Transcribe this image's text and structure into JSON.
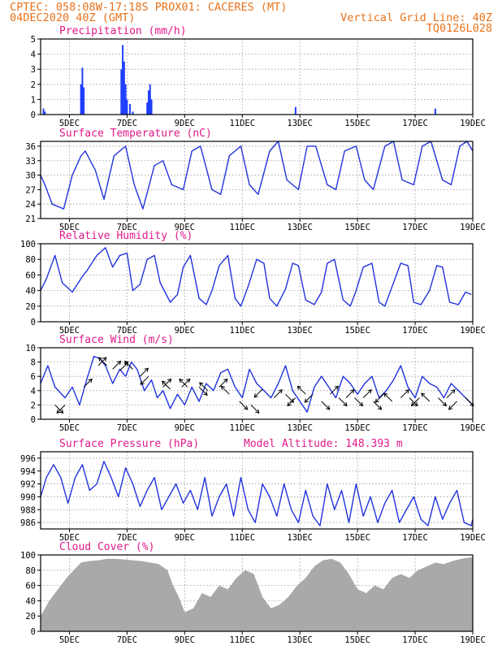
{
  "header": {
    "line1_left": "CPTEC:  058:08W-17:18S  PROX01: CACERES (MT)",
    "line2_left": "04DEC2020 40Z (GMT)",
    "line2_right": "Vertical Grid Line: 40Z",
    "line3_right": "TQ0126L028"
  },
  "colors": {
    "header": "#e8721c",
    "panel_title": "#e0198a",
    "line": "#2233dd",
    "bar": "#1f3fff",
    "cloud": "#a9a9a9",
    "grid": "#999999"
  },
  "x_ticks": [
    "5DEC",
    "7DEC",
    "9DEC",
    "11DEC",
    "13DEC",
    "15DEC",
    "17DEC",
    "19DEC"
  ],
  "chart_data": [
    {
      "type": "bar",
      "title": "Precipitation (mm/h)",
      "x": [
        4.1,
        4.15,
        5.4,
        5.45,
        5.5,
        6.8,
        6.85,
        6.9,
        6.95,
        7.0,
        7.1,
        7.2,
        7.7,
        7.75,
        7.8,
        7.85,
        12.85,
        17.7
      ],
      "values": [
        0.4,
        0.2,
        2.0,
        3.1,
        1.8,
        3.0,
        4.6,
        3.5,
        2.0,
        1.0,
        0.7,
        0.2,
        0.8,
        1.6,
        2.0,
        1.0,
        0.5,
        0.4
      ],
      "ylim": [
        0,
        5
      ],
      "yticks": [
        0,
        1,
        2,
        3,
        4,
        5
      ],
      "xlim": [
        4.0,
        19.0
      ]
    },
    {
      "type": "line",
      "title": "Surface Temperature (nC)",
      "x": [
        4.0,
        4.15,
        4.4,
        4.8,
        5.1,
        5.4,
        5.55,
        5.9,
        6.2,
        6.55,
        6.95,
        7.25,
        7.55,
        7.95,
        8.25,
        8.55,
        8.95,
        9.25,
        9.55,
        9.95,
        10.25,
        10.55,
        10.95,
        11.25,
        11.55,
        11.95,
        12.25,
        12.55,
        12.95,
        13.25,
        13.55,
        13.95,
        14.25,
        14.55,
        14.95,
        15.25,
        15.55,
        15.95,
        16.25,
        16.55,
        16.95,
        17.25,
        17.55,
        17.95,
        18.25,
        18.55,
        18.8,
        19.0
      ],
      "values": [
        30,
        28,
        24,
        23,
        30,
        34,
        35,
        31,
        25,
        34,
        36,
        28,
        23,
        32,
        33,
        28,
        27,
        35,
        36,
        27,
        26,
        34,
        36,
        28,
        26,
        35,
        37,
        29,
        27,
        36,
        36,
        28,
        27,
        35,
        36,
        29,
        27,
        36,
        37,
        29,
        28,
        36,
        37,
        29,
        28,
        36,
        37,
        35
      ],
      "ylim": [
        21,
        37
      ],
      "yticks": [
        21,
        24,
        27,
        30,
        33,
        36
      ],
      "xlim": [
        4.0,
        19.0
      ]
    },
    {
      "type": "line",
      "title": "Relative Humidity (%)",
      "x": [
        4.0,
        4.2,
        4.5,
        4.75,
        5.1,
        5.45,
        5.6,
        5.95,
        6.25,
        6.5,
        6.75,
        7.0,
        7.2,
        7.45,
        7.7,
        7.95,
        8.15,
        8.5,
        8.75,
        8.95,
        9.2,
        9.5,
        9.75,
        9.95,
        10.2,
        10.5,
        10.75,
        10.95,
        11.2,
        11.5,
        11.75,
        11.95,
        12.2,
        12.5,
        12.75,
        12.95,
        13.2,
        13.5,
        13.75,
        13.95,
        14.2,
        14.5,
        14.75,
        14.95,
        15.2,
        15.5,
        15.75,
        15.95,
        16.2,
        16.5,
        16.75,
        16.95,
        17.2,
        17.5,
        17.75,
        17.95,
        18.2,
        18.5,
        18.75,
        18.95
      ],
      "values": [
        40,
        55,
        85,
        50,
        38,
        58,
        65,
        85,
        95,
        70,
        85,
        88,
        40,
        48,
        80,
        85,
        50,
        25,
        35,
        70,
        85,
        30,
        22,
        40,
        72,
        85,
        30,
        20,
        45,
        80,
        75,
        30,
        20,
        42,
        75,
        72,
        28,
        22,
        38,
        75,
        80,
        28,
        20,
        40,
        70,
        75,
        25,
        20,
        45,
        75,
        72,
        25,
        22,
        40,
        72,
        70,
        25,
        22,
        38,
        35
      ],
      "ylim": [
        0,
        100
      ],
      "yticks": [
        0,
        20,
        40,
        60,
        80,
        100
      ],
      "xlim": [
        4.0,
        19.0
      ]
    },
    {
      "type": "line",
      "title": "Surface Wind (m/s)",
      "x": [
        4.0,
        4.25,
        4.5,
        4.85,
        5.1,
        5.35,
        5.6,
        5.85,
        6.05,
        6.25,
        6.5,
        6.75,
        6.95,
        7.15,
        7.35,
        7.6,
        7.85,
        8.05,
        8.25,
        8.5,
        8.75,
        9.0,
        9.25,
        9.5,
        9.75,
        10.0,
        10.25,
        10.5,
        10.75,
        11.0,
        11.25,
        11.5,
        11.75,
        12.0,
        12.25,
        12.5,
        12.75,
        13.0,
        13.25,
        13.5,
        13.75,
        14.0,
        14.25,
        14.5,
        14.75,
        15.0,
        15.25,
        15.5,
        15.75,
        16.0,
        16.25,
        16.5,
        16.75,
        17.0,
        17.25,
        17.5,
        17.75,
        18.0,
        18.25,
        18.5,
        18.75,
        19.0
      ],
      "values": [
        5,
        7.5,
        4.5,
        3,
        4.5,
        2,
        5.5,
        8.8,
        8.5,
        7.5,
        5,
        7,
        6,
        8,
        7,
        4,
        5.5,
        3,
        4,
        1.5,
        3.5,
        2,
        4.5,
        2.5,
        5,
        4,
        6.5,
        7,
        4.5,
        3,
        7,
        5,
        4,
        3,
        5,
        7.5,
        4,
        2.5,
        1,
        4.5,
        6,
        4.5,
        3,
        6,
        5,
        3.5,
        5,
        6,
        3,
        4,
        5.5,
        7.5,
        4.5,
        3,
        6,
        5,
        4.5,
        3,
        5,
        4,
        3,
        2
      ],
      "arrows": [
        [
          4.5,
          2,
          3
        ],
        [
          4.85,
          2,
          2
        ],
        [
          5.5,
          4.5,
          1
        ],
        [
          6.0,
          7.5,
          1
        ],
        [
          6.3,
          7.5,
          0
        ],
        [
          6.5,
          7,
          1
        ],
        [
          6.75,
          6.8,
          1
        ],
        [
          7.2,
          7,
          0
        ],
        [
          7.45,
          6,
          1
        ],
        [
          7.75,
          6,
          2
        ],
        [
          8.25,
          4.5,
          1
        ],
        [
          8.5,
          4.2,
          0
        ],
        [
          8.9,
          4.5,
          1
        ],
        [
          9.1,
          4.5,
          0
        ],
        [
          9.5,
          4.5,
          3
        ],
        [
          9.8,
          4,
          0
        ],
        [
          10.2,
          4.5,
          1
        ],
        [
          10.55,
          3.5,
          0
        ],
        [
          10.9,
          2.5,
          3
        ],
        [
          11.3,
          2,
          3
        ],
        [
          11.7,
          4.2,
          2
        ],
        [
          12.1,
          3,
          1
        ],
        [
          12.5,
          3.5,
          3
        ],
        [
          12.85,
          3,
          2
        ],
        [
          13.2,
          3.5,
          0
        ],
        [
          13.45,
          3.5,
          2
        ],
        [
          13.75,
          2.5,
          3
        ],
        [
          14.05,
          3.5,
          1
        ],
        [
          14.35,
          3,
          3
        ],
        [
          14.6,
          3,
          1
        ],
        [
          14.9,
          3,
          3
        ],
        [
          15.2,
          3,
          1
        ],
        [
          15.55,
          2.5,
          3
        ],
        [
          15.9,
          3.5,
          2
        ],
        [
          16.2,
          2.5,
          0
        ],
        [
          16.5,
          3,
          1
        ],
        [
          16.8,
          3,
          3
        ],
        [
          17.15,
          3,
          2
        ],
        [
          17.5,
          2.5,
          0
        ],
        [
          17.8,
          3,
          3
        ],
        [
          18.1,
          3,
          1
        ],
        [
          18.45,
          2.5,
          2
        ],
        [
          18.75,
          3,
          3
        ]
      ],
      "ylim": [
        0,
        10
      ],
      "yticks": [
        0,
        2,
        4,
        6,
        8,
        10
      ],
      "xlim": [
        4.0,
        19.0
      ]
    },
    {
      "type": "line",
      "title": "Surface Pressure (hPa)",
      "annotation": "Model Altitude: 148.393 m",
      "x": [
        4.0,
        4.2,
        4.45,
        4.7,
        4.95,
        5.2,
        5.45,
        5.7,
        5.95,
        6.2,
        6.45,
        6.7,
        6.95,
        7.2,
        7.45,
        7.7,
        7.95,
        8.2,
        8.45,
        8.7,
        8.95,
        9.2,
        9.45,
        9.7,
        9.95,
        10.2,
        10.45,
        10.7,
        10.95,
        11.2,
        11.45,
        11.7,
        11.95,
        12.2,
        12.45,
        12.7,
        12.95,
        13.2,
        13.45,
        13.7,
        13.95,
        14.2,
        14.45,
        14.7,
        14.95,
        15.2,
        15.45,
        15.7,
        15.95,
        16.2,
        16.45,
        16.7,
        16.95,
        17.2,
        17.45,
        17.7,
        17.95,
        18.2,
        18.45,
        18.7,
        18.95,
        19.0
      ],
      "values": [
        990,
        993,
        995,
        993,
        989,
        993,
        995,
        991,
        992,
        995.5,
        993,
        990,
        994.5,
        992,
        988.5,
        991,
        993,
        988,
        990,
        992,
        989,
        991,
        988,
        993,
        987,
        990,
        992,
        987,
        993,
        988,
        986,
        992,
        990,
        987,
        992,
        988,
        986,
        991,
        987,
        985.5,
        992,
        988,
        991,
        986,
        992,
        987,
        990,
        986,
        989,
        991,
        986,
        988,
        990,
        986.5,
        985.5,
        990,
        986.5,
        989,
        991,
        986,
        985.5,
        986.5
      ],
      "ylim": [
        985,
        997
      ],
      "yticks": [
        986,
        988,
        990,
        992,
        994,
        996
      ],
      "xlim": [
        4.0,
        19.0
      ]
    },
    {
      "type": "area",
      "title": "Cloud Cover (%)",
      "x": [
        4.0,
        4.3,
        4.6,
        4.9,
        5.15,
        5.4,
        5.7,
        6.0,
        6.3,
        6.6,
        6.9,
        7.2,
        7.5,
        7.8,
        8.1,
        8.4,
        8.6,
        8.8,
        9.0,
        9.3,
        9.6,
        9.9,
        10.2,
        10.5,
        10.8,
        11.1,
        11.4,
        11.7,
        12.0,
        12.3,
        12.6,
        12.9,
        13.2,
        13.5,
        13.8,
        14.1,
        14.4,
        14.7,
        15.0,
        15.3,
        15.6,
        15.9,
        16.2,
        16.5,
        16.8,
        17.1,
        17.4,
        17.7,
        18.0,
        18.3,
        18.6,
        19.0
      ],
      "values": [
        20,
        40,
        55,
        70,
        80,
        90,
        92,
        93,
        95,
        95,
        94,
        93,
        92,
        90,
        88,
        80,
        60,
        45,
        25,
        30,
        50,
        45,
        60,
        55,
        70,
        80,
        75,
        45,
        30,
        35,
        45,
        60,
        70,
        85,
        93,
        95,
        90,
        75,
        55,
        50,
        60,
        55,
        70,
        75,
        70,
        80,
        85,
        90,
        88,
        92,
        95,
        97
      ],
      "ylim": [
        0,
        100
      ],
      "yticks": [
        0,
        20,
        40,
        60,
        80,
        100
      ],
      "xlim": [
        4.0,
        19.0
      ]
    }
  ]
}
